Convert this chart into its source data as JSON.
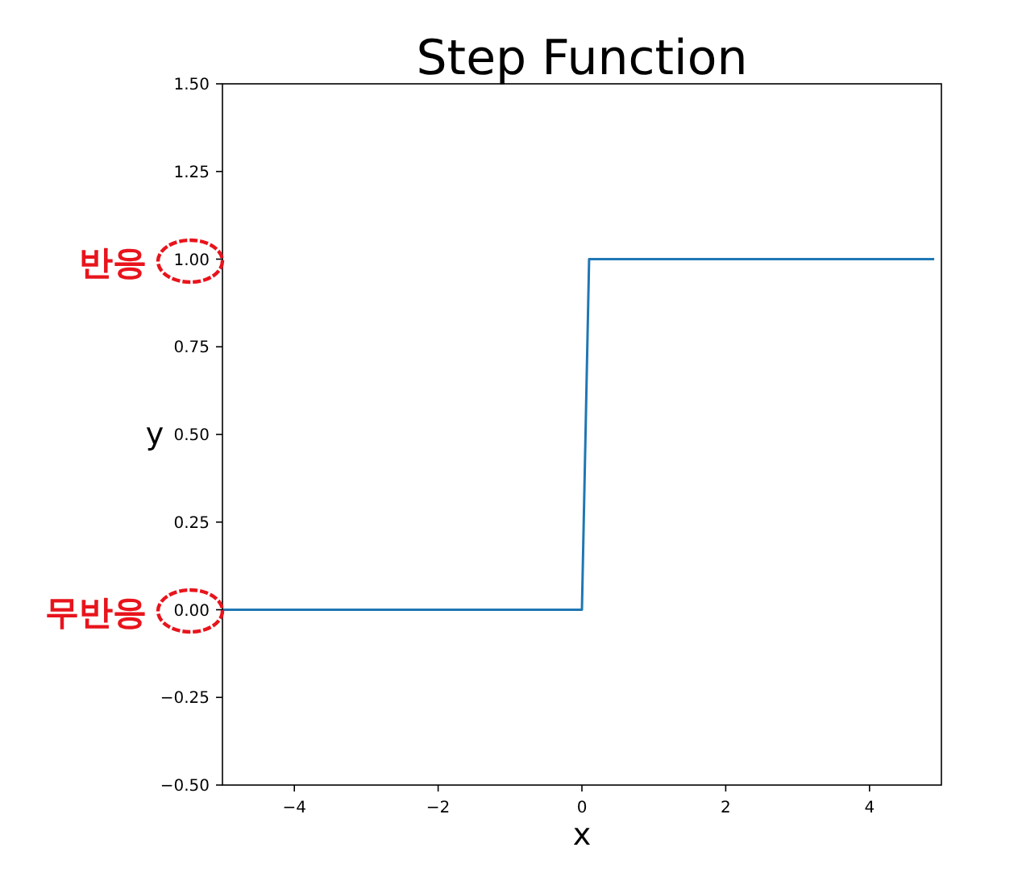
{
  "chart_data": {
    "type": "line",
    "title": "Step Function",
    "xlabel": "x",
    "ylabel": "y",
    "x": [
      -5,
      0,
      0.1,
      4.9
    ],
    "series": [
      {
        "color": "#1f77b4",
        "values": [
          0,
          0,
          1,
          1
        ]
      }
    ],
    "xlim": [
      -5,
      5
    ],
    "xticks": [
      {
        "value": -4,
        "label": "−4"
      },
      {
        "value": -2,
        "label": "−2"
      },
      0,
      2,
      4
    ],
    "ylim": [
      -0.5,
      1.5
    ],
    "yticks": [
      {
        "value": -0.5,
        "label": "−0.50"
      },
      {
        "value": -0.25,
        "label": "−0.25"
      },
      {
        "value": 0,
        "label": "0.00"
      },
      {
        "value": 0.25,
        "label": "0.25"
      },
      {
        "value": 0.5,
        "label": "0.50"
      },
      {
        "value": 0.75,
        "label": "0.75"
      },
      {
        "value": 1,
        "label": "1.00"
      },
      {
        "value": 1.25,
        "label": "1.25"
      },
      {
        "value": 1.5,
        "label": "1.50"
      }
    ],
    "annotations": [
      "반응",
      "무반응"
    ],
    "grid": false,
    "marker": "none",
    "line_style": "solid"
  }
}
